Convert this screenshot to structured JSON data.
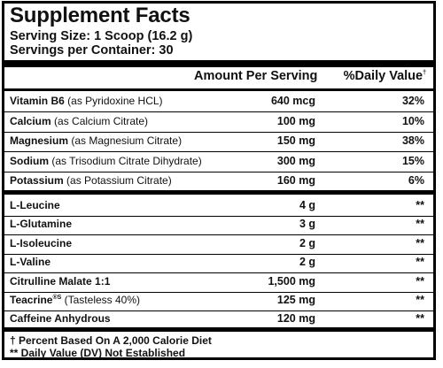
{
  "title": "Supplement Facts",
  "serving_size": "Serving Size: 1 Scoop (16.2 g)",
  "servings_per_container": "Servings per Container: 30",
  "header": {
    "amount": "Amount Per Serving",
    "dv": "%Daily Value",
    "dv_mark": "†"
  },
  "vitamins_minerals": [
    {
      "name": "Vitamin B6",
      "source": "(as Pyridoxine HCL)",
      "amount": "640 mcg",
      "dv": "32%"
    },
    {
      "name": "Calcium",
      "source": "(as Calcium Citrate)",
      "amount": "100 mg",
      "dv": "10%"
    },
    {
      "name": "Magnesium",
      "source": "(as Magnesium Citrate)",
      "amount": "150 mg",
      "dv": "38%"
    },
    {
      "name": "Sodium",
      "source": "(as Trisodium Citrate Dihydrate)",
      "amount": "300 mg",
      "dv": "15%"
    },
    {
      "name": "Potassium",
      "source": "(as Potassium Citrate)",
      "amount": "160 mg",
      "dv": "6%"
    }
  ],
  "ingredients": [
    {
      "name": "L-Leucine",
      "source": "",
      "amount": "4 g",
      "dv": "**"
    },
    {
      "name": "L-Glutamine",
      "source": "",
      "amount": "3 g",
      "dv": "**"
    },
    {
      "name": "L-Isoleucine",
      "source": "",
      "amount": "2 g",
      "dv": "**"
    },
    {
      "name": "L-Valine",
      "source": "",
      "amount": "2 g",
      "dv": "**"
    },
    {
      "name": "Citrulline Malate 1:1",
      "source": "",
      "amount": "1,500 mg",
      "dv": "**"
    },
    {
      "name": "Teacrine",
      "mark": "®S",
      "source": "(Tasteless 40%)",
      "amount": "125 mg",
      "dv": "**"
    },
    {
      "name": "Caffeine Anhydrous",
      "source": "",
      "amount": "120 mg",
      "dv": "**"
    }
  ],
  "footnotes": [
    "† Percent Based On A 2,000 Calorie Diet",
    "** Daily Value (DV)  Not Established"
  ]
}
